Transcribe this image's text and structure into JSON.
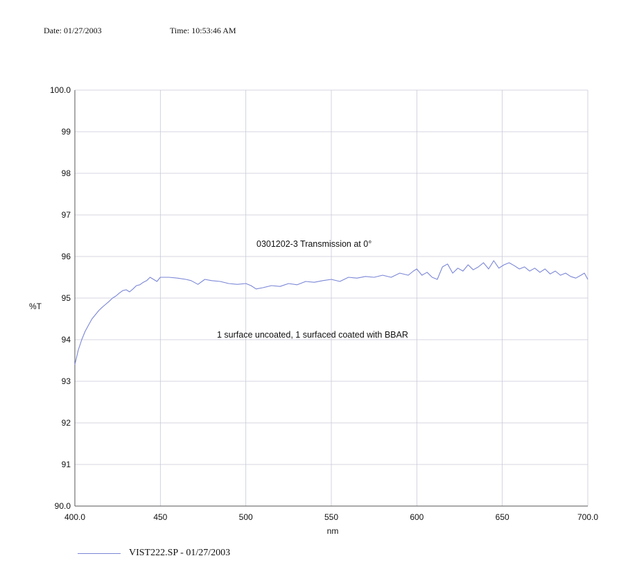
{
  "header": {
    "date": "Date: 01/27/2003",
    "time": "Time: 10:53:46 AM"
  },
  "chart_data": {
    "type": "line",
    "xlabel": "nm",
    "ylabel": "%T",
    "xlim": [
      400,
      700
    ],
    "ylim": [
      90,
      100
    ],
    "x_ticks": [
      "400.0",
      "450",
      "500",
      "550",
      "600",
      "650",
      "700.0"
    ],
    "y_ticks": [
      "90.0",
      "91",
      "92",
      "93",
      "94",
      "95",
      "96",
      "97",
      "98",
      "99",
      "100.0"
    ],
    "grid": true,
    "annotations": [
      "0301202-3 Transmission at 0°",
      "1 surface uncoated, 1 surfaced coated with BBAR"
    ],
    "legend_position": "bottom-left",
    "series": [
      {
        "name": "VIST222.SP - 01/27/2003",
        "color": "#7a86d6",
        "x": [
          400,
          402,
          404,
          406,
          408,
          410,
          412,
          414,
          416,
          418,
          420,
          422,
          424,
          426,
          428,
          430,
          432,
          434,
          436,
          438,
          440,
          442,
          444,
          446,
          448,
          450,
          455,
          460,
          465,
          468,
          472,
          476,
          480,
          485,
          490,
          495,
          500,
          503,
          506,
          510,
          515,
          520,
          525,
          530,
          535,
          540,
          545,
          550,
          555,
          560,
          565,
          570,
          575,
          580,
          585,
          590,
          595,
          598,
          600,
          603,
          606,
          609,
          612,
          615,
          618,
          621,
          624,
          627,
          630,
          633,
          636,
          639,
          642,
          645,
          648,
          651,
          654,
          657,
          660,
          663,
          666,
          669,
          672,
          675,
          678,
          681,
          684,
          687,
          690,
          693,
          696,
          698,
          700
        ],
        "y": [
          93.4,
          93.75,
          94.0,
          94.2,
          94.35,
          94.5,
          94.6,
          94.7,
          94.78,
          94.85,
          94.92,
          95.0,
          95.05,
          95.12,
          95.18,
          95.2,
          95.15,
          95.22,
          95.3,
          95.32,
          95.38,
          95.42,
          95.5,
          95.45,
          95.4,
          95.5,
          95.5,
          95.48,
          95.45,
          95.42,
          95.33,
          95.45,
          95.42,
          95.4,
          95.35,
          95.33,
          95.35,
          95.3,
          95.22,
          95.25,
          95.3,
          95.28,
          95.35,
          95.32,
          95.4,
          95.38,
          95.42,
          95.45,
          95.4,
          95.5,
          95.48,
          95.52,
          95.5,
          95.55,
          95.5,
          95.6,
          95.55,
          95.65,
          95.7,
          95.55,
          95.62,
          95.5,
          95.45,
          95.75,
          95.82,
          95.6,
          95.72,
          95.65,
          95.8,
          95.68,
          95.75,
          95.85,
          95.7,
          95.9,
          95.72,
          95.8,
          95.85,
          95.78,
          95.7,
          95.75,
          95.65,
          95.72,
          95.62,
          95.7,
          95.58,
          95.65,
          95.55,
          95.6,
          95.52,
          95.48,
          95.55,
          95.6,
          95.45
        ]
      }
    ]
  }
}
